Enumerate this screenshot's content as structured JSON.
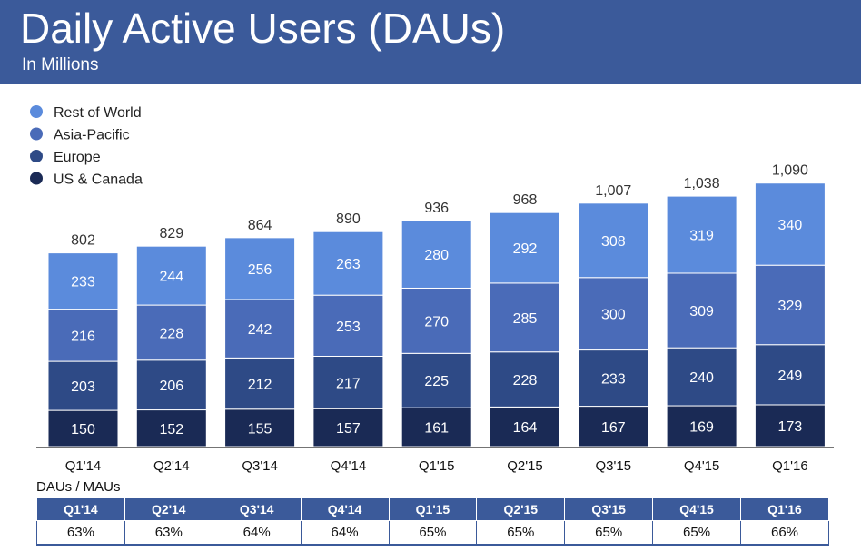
{
  "header": {
    "title": "Daily Active Users (DAUs)",
    "subtitle": "In Millions"
  },
  "colors": {
    "header_bg": "#3b5a9a",
    "rest_of_world": "#5b8bdc",
    "asia_pacific": "#4a6bb8",
    "europe": "#2e4a86",
    "us_canada": "#1a2a55"
  },
  "chart_data": {
    "type": "bar",
    "stacked": true,
    "categories": [
      "Q1'14",
      "Q2'14",
      "Q3'14",
      "Q4'14",
      "Q1'15",
      "Q2'15",
      "Q3'15",
      "Q4'15",
      "Q1'16"
    ],
    "series": [
      {
        "name": "US & Canada",
        "values": [
          150,
          152,
          155,
          157,
          161,
          164,
          167,
          169,
          173
        ],
        "color": "#1a2a55"
      },
      {
        "name": "Europe",
        "values": [
          203,
          206,
          212,
          217,
          225,
          228,
          233,
          240,
          249
        ],
        "color": "#2e4a86"
      },
      {
        "name": "Asia-Pacific",
        "values": [
          216,
          228,
          242,
          253,
          270,
          285,
          300,
          309,
          329
        ],
        "color": "#4a6bb8"
      },
      {
        "name": "Rest of World",
        "values": [
          233,
          244,
          256,
          263,
          280,
          292,
          308,
          319,
          340
        ],
        "color": "#5b8bdc"
      }
    ],
    "totals": [
      "802",
      "829",
      "864",
      "890",
      "936",
      "968",
      "1,007",
      "1,038",
      "1,090"
    ],
    "legend_order": [
      "Rest of World",
      "Asia-Pacific",
      "Europe",
      "US & Canada"
    ],
    "legend_position": "top-left",
    "ylim": [
      0,
      1150
    ],
    "grid": false
  },
  "ratio_table": {
    "title": "DAUs / MAUs",
    "headers": [
      "Q1'14",
      "Q2'14",
      "Q3'14",
      "Q4'14",
      "Q1'15",
      "Q2'15",
      "Q3'15",
      "Q4'15",
      "Q1'16"
    ],
    "values": [
      "63%",
      "63%",
      "64%",
      "64%",
      "65%",
      "65%",
      "65%",
      "65%",
      "66%"
    ]
  }
}
